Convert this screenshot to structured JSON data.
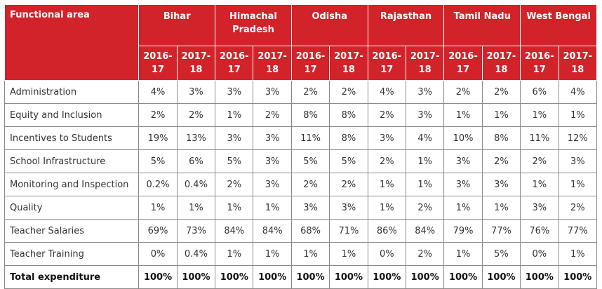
{
  "header": {
    "area_label": "Functional area",
    "states": [
      "Bihar",
      "Himachal Pradesh",
      "Odisha",
      "Rajasthan",
      "Tamil Nadu",
      "West Bengal"
    ],
    "years": [
      "2016-17",
      "2017-18"
    ]
  },
  "rows": [
    {
      "label": "Administration",
      "values": [
        "4%",
        "3%",
        "3%",
        "3%",
        "2%",
        "2%",
        "4%",
        "3%",
        "2%",
        "2%",
        "6%",
        "4%"
      ]
    },
    {
      "label": "Equity and Inclusion",
      "values": [
        "2%",
        "2%",
        "1%",
        "2%",
        "8%",
        "8%",
        "2%",
        "3%",
        "1%",
        "1%",
        "1%",
        "1%"
      ]
    },
    {
      "label": "Incentives to Students",
      "values": [
        "19%",
        "13%",
        "3%",
        "3%",
        "11%",
        "8%",
        "3%",
        "4%",
        "10%",
        "8%",
        "11%",
        "12%"
      ]
    },
    {
      "label": "School Infrastructure",
      "values": [
        "5%",
        "6%",
        "5%",
        "3%",
        "5%",
        "5%",
        "2%",
        "1%",
        "3%",
        "2%",
        "2%",
        "3%"
      ]
    },
    {
      "label": "Monitoring and Inspection",
      "values": [
        "0.2%",
        "0.4%",
        "2%",
        "3%",
        "2%",
        "2%",
        "1%",
        "1%",
        "3%",
        "3%",
        "1%",
        "1%"
      ]
    },
    {
      "label": "Quality",
      "values": [
        "1%",
        "1%",
        "1%",
        "1%",
        "3%",
        "3%",
        "1%",
        "2%",
        "1%",
        "1%",
        "3%",
        "2%"
      ]
    },
    {
      "label": "Teacher Salaries",
      "values": [
        "69%",
        "73%",
        "84%",
        "84%",
        "68%",
        "71%",
        "86%",
        "84%",
        "79%",
        "77%",
        "76%",
        "77%"
      ]
    },
    {
      "label": "Teacher Training",
      "values": [
        "0%",
        "0.4%",
        "1%",
        "1%",
        "1%",
        "1%",
        "0%",
        "2%",
        "1%",
        "5%",
        "0%",
        "1%"
      ]
    }
  ],
  "total": {
    "label": "Total expenditure",
    "values": [
      "100%",
      "100%",
      "100%",
      "100%",
      "100%",
      "100%",
      "100%",
      "100%",
      "100%",
      "100%",
      "100%",
      "100%"
    ]
  }
}
